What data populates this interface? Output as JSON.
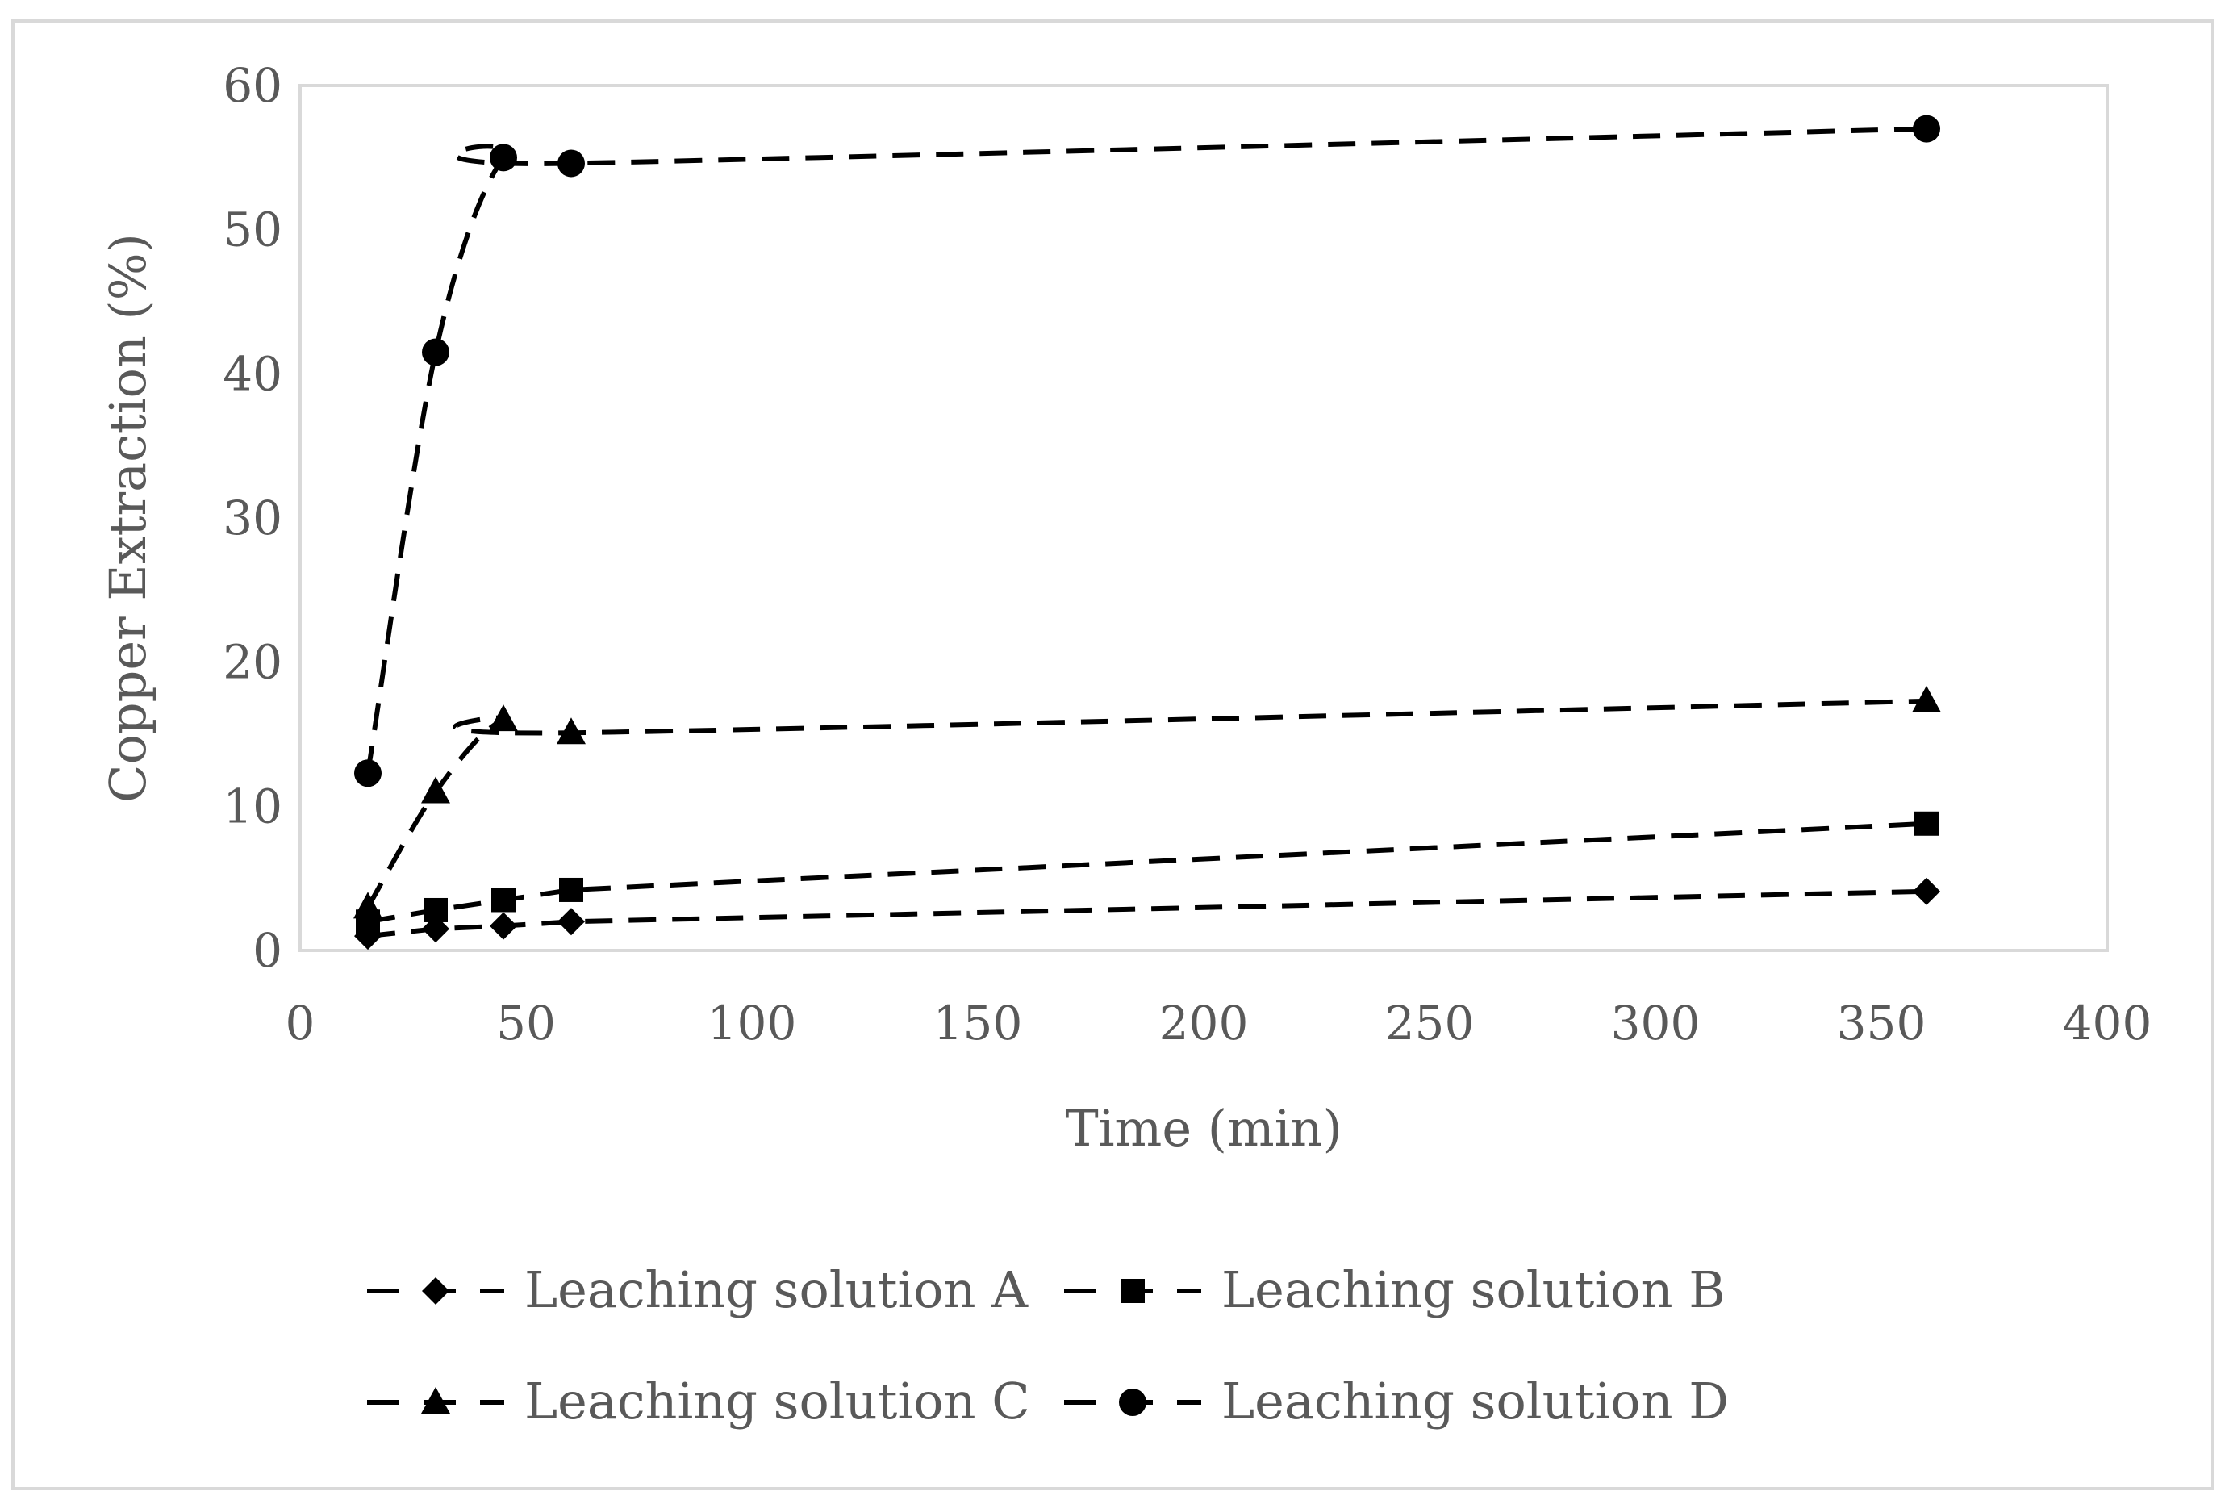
{
  "chart_data": {
    "type": "line",
    "title": "",
    "xlabel": "Time (min)",
    "ylabel": "Copper Extraction (%)",
    "xlim": [
      0,
      400
    ],
    "ylim": [
      0,
      60
    ],
    "xticks": [
      "0",
      "50",
      "100",
      "150",
      "200",
      "250",
      "300",
      "350",
      "400"
    ],
    "yticks": [
      "0",
      "10",
      "20",
      "30",
      "40",
      "50",
      "60"
    ],
    "grid": false,
    "legend_position": "bottom",
    "line_style": "dashed",
    "colors": {
      "series": "#000000",
      "axis_text": "#595959",
      "plot_border": "#d9d9d9"
    },
    "series": [
      {
        "name": "Leaching solution A",
        "marker": "diamond",
        "x": [
          15,
          30,
          45,
          60,
          360
        ],
        "y": [
          1.0,
          1.5,
          1.7,
          2.0,
          4.1
        ]
      },
      {
        "name": "Leaching solution B",
        "marker": "square",
        "x": [
          15,
          30,
          45,
          60,
          360
        ],
        "y": [
          2.0,
          2.8,
          3.5,
          4.2,
          8.8
        ]
      },
      {
        "name": "Leaching solution C",
        "marker": "triangle",
        "x": [
          15,
          30,
          45,
          60,
          360
        ],
        "y": [
          3.0,
          11.0,
          16.0,
          15.1,
          17.3
        ]
      },
      {
        "name": "Leaching solution D",
        "marker": "circle",
        "x": [
          15,
          30,
          45,
          60,
          360
        ],
        "y": [
          12.3,
          41.5,
          55.0,
          54.6,
          57.0
        ]
      }
    ]
  }
}
